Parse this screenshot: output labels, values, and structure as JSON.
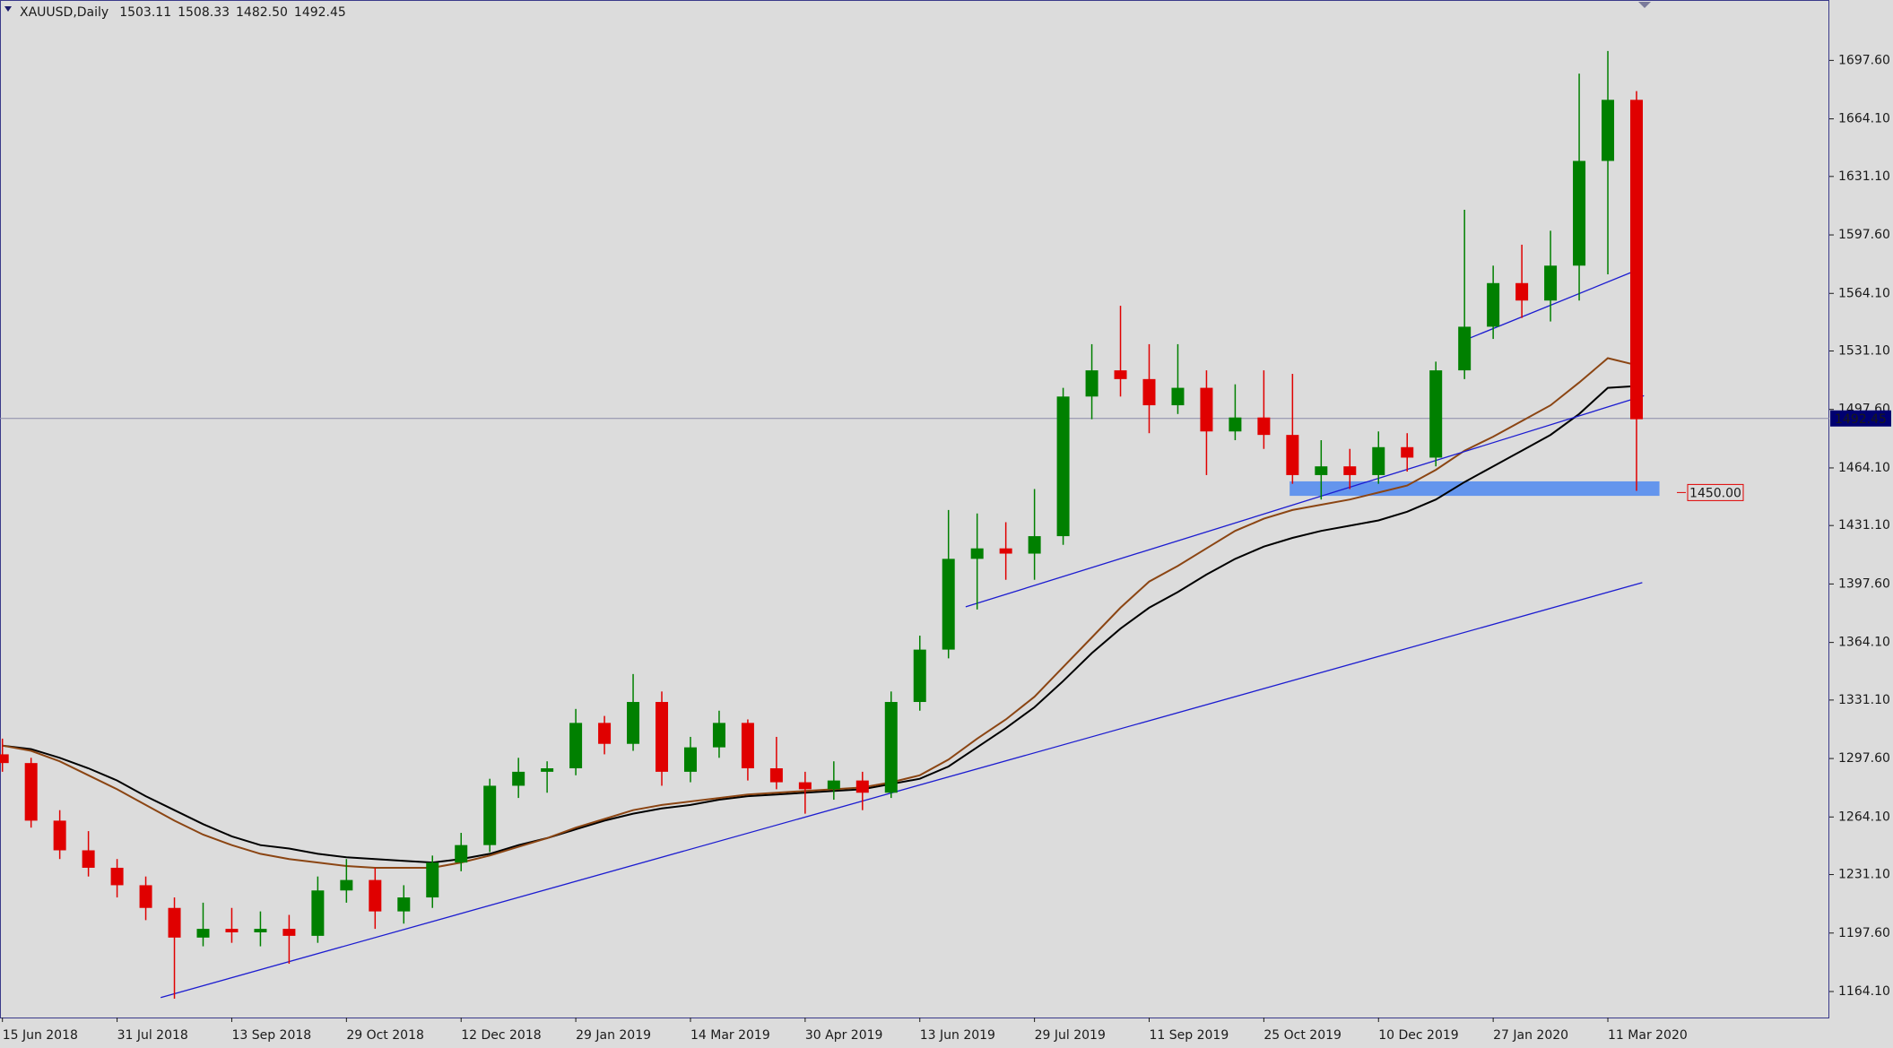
{
  "chart_data": {
    "type": "candlestick",
    "title": "XAUUSD,Daily",
    "ohlc": [
      1503.11,
      1508.33,
      {
        "value": 1482.5,
        "label": "1482.50"
      },
      1492.45
    ],
    "up_color": "#008000",
    "down_color": "#e00000",
    "candles": [
      [
        1300,
        1309,
        1290,
        1295
      ],
      [
        1295,
        1298,
        1258,
        1262
      ],
      [
        1262,
        1268,
        1240,
        1245
      ],
      [
        1245,
        1256,
        1230,
        1235
      ],
      [
        1235,
        1240,
        1218,
        1225
      ],
      [
        1225,
        1230,
        1205,
        1212
      ],
      [
        1212,
        1218,
        1160,
        1195
      ],
      [
        1195,
        1215,
        1190,
        1200
      ],
      [
        1200,
        1212,
        1192,
        1198
      ],
      [
        1198,
        1210,
        1190,
        1200
      ],
      [
        1200,
        1208,
        1180,
        1196
      ],
      [
        1196,
        1230,
        1192,
        1222
      ],
      [
        1222,
        1240,
        1215,
        1228
      ],
      [
        1228,
        1235,
        1200,
        1210
      ],
      [
        1210,
        1225,
        1203,
        1218
      ],
      [
        1218,
        1242,
        1212,
        1238
      ],
      [
        1238,
        1255,
        1233,
        1248
      ],
      [
        1248,
        1286,
        1244,
        1282
      ],
      [
        1282,
        1298,
        1275,
        1290
      ],
      [
        1290,
        1296,
        1278,
        1292
      ],
      [
        1292,
        1326,
        1288,
        1318
      ],
      [
        1318,
        1322,
        1300,
        1306
      ],
      [
        1306,
        1346,
        1302,
        1330
      ],
      [
        1330,
        1336,
        1282,
        1290
      ],
      [
        1290,
        1310,
        1284,
        1304
      ],
      [
        1304,
        1325,
        1298,
        1318
      ],
      [
        1318,
        1320,
        1285,
        1292
      ],
      [
        1292,
        1310,
        1280,
        1284
      ],
      [
        1284,
        1290,
        1266,
        1280
      ],
      [
        1280,
        1296,
        1274,
        1285
      ],
      [
        1285,
        1290,
        1268,
        1278
      ],
      [
        1278,
        1336,
        1275,
        1330
      ],
      [
        1330,
        1368,
        1325,
        1360
      ],
      [
        1360,
        1440,
        1355,
        1412
      ],
      [
        1412,
        1438,
        1383,
        1418
      ],
      [
        1418,
        1433,
        1400,
        1415
      ],
      [
        1415,
        1452,
        1400,
        1425
      ],
      [
        1425,
        1510,
        1420,
        1505
      ],
      [
        1505,
        1535,
        1492,
        1520
      ],
      [
        1520,
        1557,
        1505,
        1515
      ],
      [
        1515,
        1535,
        1484,
        1500
      ],
      [
        1500,
        1535,
        1495,
        1510
      ],
      [
        1510,
        1520,
        1460,
        1485
      ],
      [
        1485,
        1512,
        1480,
        1493
      ],
      [
        1493,
        1520,
        1475,
        1483
      ],
      [
        1483,
        1518,
        1455,
        1460
      ],
      [
        1460,
        1480,
        1446,
        1465
      ],
      [
        1465,
        1475,
        1452,
        1460
      ],
      [
        1460,
        1485,
        1455,
        1476
      ],
      [
        1476,
        1484,
        1462,
        1470
      ],
      [
        1470,
        1525,
        1465,
        1520
      ],
      [
        1520,
        1612,
        1515,
        1545
      ],
      [
        1545,
        1580,
        1538,
        1570
      ],
      [
        1570,
        1592,
        1550,
        1560
      ],
      [
        1560,
        1600,
        1548,
        1580
      ],
      [
        1580,
        1690,
        1560,
        1640
      ],
      [
        1640,
        1703,
        1575,
        1675
      ],
      [
        1675,
        1680,
        1451,
        1492
      ]
    ],
    "series": [
      {
        "color": "#000000",
        "values": [
          1305,
          1303,
          1298,
          1292,
          1285,
          1276,
          1268,
          1260,
          1253,
          1248,
          1246,
          1243,
          1241,
          1240,
          1239,
          1238,
          1240,
          1243,
          1248,
          1252,
          1257,
          1262,
          1266,
          1269,
          1271,
          1274,
          1276,
          1277,
          1278,
          1279,
          1280,
          1283,
          1286,
          1293,
          1304,
          1315,
          1327,
          1342,
          1358,
          1372,
          1384,
          1393,
          1403,
          1412,
          1419,
          1424,
          1428,
          1431,
          1434,
          1439,
          1446,
          1456,
          1465,
          1474,
          1483,
          1495,
          1510,
          1511
        ]
      },
      {
        "color": "#8b4513",
        "values": [
          1305,
          1302,
          1296,
          1288,
          1280,
          1271,
          1262,
          1254,
          1248,
          1243,
          1240,
          1238,
          1236,
          1235,
          1235,
          1235,
          1238,
          1242,
          1247,
          1252,
          1258,
          1263,
          1268,
          1271,
          1273,
          1275,
          1277,
          1278,
          1279,
          1280,
          1281,
          1284,
          1288,
          1297,
          1309,
          1320,
          1333,
          1350,
          1367,
          1384,
          1399,
          1408,
          1418,
          1428,
          1435,
          1440,
          1443,
          1446,
          1450,
          1454,
          1463,
          1474,
          1482,
          1491,
          1500,
          1513,
          1527,
          1523
        ]
      }
    ],
    "trendlines": [
      {
        "color": "#1c1cd0",
        "x": [
          5.52,
          57.2
        ],
        "y": [
          1160.6,
          1398.4
        ]
      },
      {
        "color": "#1c1cd0",
        "x": [
          33.6,
          57.26
        ],
        "y": [
          1384.5,
          1505.5
        ]
      },
      {
        "color": "#1c1cd0",
        "x": [
          50.9,
          56.9
        ],
        "y": [
          1536.6,
          1576.7
        ]
      }
    ],
    "zone": {
      "color": "#6495ed",
      "x": [
        44.9,
        57.8
      ],
      "y": [
        1448.1,
        1456.4
      ]
    },
    "annotation": {
      "value": 1450,
      "label": "1450.00",
      "color": "#e00000"
    },
    "last_price": 1492.45,
    "ylim": [
      1149.2,
      1732.2
    ],
    "yticks": [
      {
        "value": 1164.1,
        "label": "1164.10"
      },
      {
        "value": 1197.6,
        "label": "1197.60"
      },
      {
        "value": 1231.1,
        "label": "1231.10"
      },
      {
        "value": 1264.1,
        "label": "1264.10"
      },
      {
        "value": 1297.6,
        "label": "1297.60"
      },
      {
        "value": 1331.1,
        "label": "1331.10"
      },
      {
        "value": 1364.1,
        "label": "1364.10"
      },
      {
        "value": 1397.6,
        "label": "1397.60"
      },
      {
        "value": 1431.1,
        "label": "1431.10"
      },
      {
        "value": 1464.1,
        "label": "1464.10"
      },
      {
        "value": 1497.6,
        "label": "1497.60"
      },
      {
        "value": 1531.1,
        "label": "1531.10"
      },
      {
        "value": 1564.1,
        "label": "1564.10"
      },
      {
        "value": 1597.6,
        "label": "1597.60"
      },
      {
        "value": 1631.1,
        "label": "1631.10"
      },
      {
        "value": 1664.1,
        "label": "1664.10"
      },
      {
        "value": 1697.6,
        "label": "1697.60"
      }
    ],
    "xticks": [
      {
        "value": 0,
        "label": "15 Jun 2018"
      },
      {
        "value": 4,
        "label": "31 Jul 2018"
      },
      {
        "value": 8,
        "label": "13 Sep 2018"
      },
      {
        "value": 12,
        "label": "29 Oct 2018"
      },
      {
        "value": 16,
        "label": "12 Dec 2018"
      },
      {
        "value": 20,
        "label": "29 Jan 2019"
      },
      {
        "value": 24,
        "label": "14 Mar 2019"
      },
      {
        "value": 28,
        "label": "30 Apr 2019"
      },
      {
        "value": 32,
        "label": "13 Jun 2019"
      },
      {
        "value": 36,
        "label": "29 Jul 2019"
      },
      {
        "value": 40,
        "label": "11 Sep 2019"
      },
      {
        "value": 44,
        "label": "25 Oct 2019"
      },
      {
        "value": 48,
        "label": "10 Dec 2019"
      },
      {
        "value": 52,
        "label": "27 Jan 2020"
      },
      {
        "value": 56,
        "label": "11 Mar 2020"
      }
    ]
  }
}
